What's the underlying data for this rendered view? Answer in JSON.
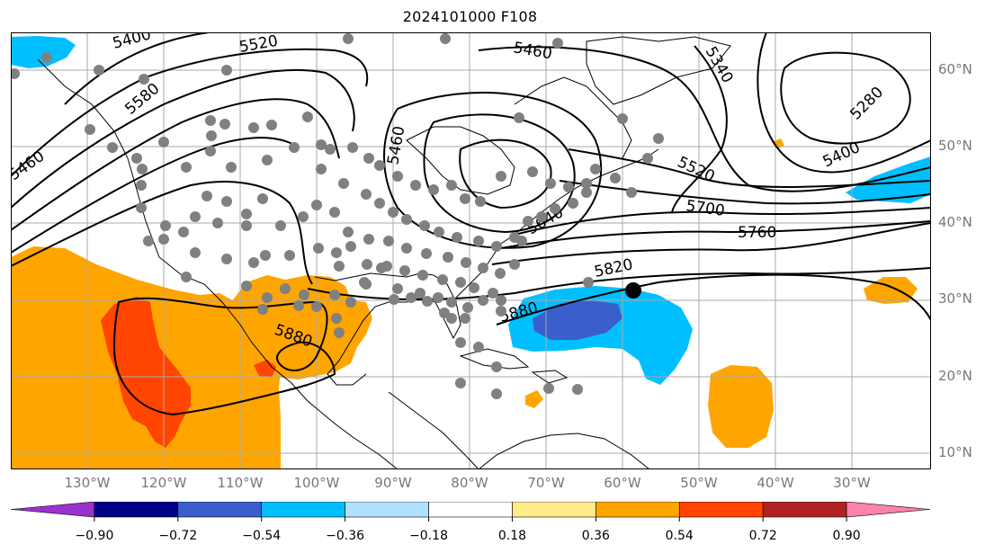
{
  "title": "2024101000 F108",
  "map": {
    "lat_labels": [
      "60°N",
      "50°N",
      "40°N",
      "30°N",
      "20°N",
      "10°N"
    ],
    "lon_labels": [
      "130°W",
      "120°W",
      "110°W",
      "100°W",
      "90°W",
      "80°W",
      "70°W",
      "60°W",
      "50°W",
      "40°W",
      "30°W"
    ],
    "height_contour_labels": [
      "5400",
      "5520",
      "5460",
      "5340",
      "5580",
      "5460",
      "5280",
      "5460",
      "5520",
      "5400",
      "5700",
      "5640",
      "5760",
      "5820",
      "5880",
      "5880"
    ],
    "colors": {
      "land_outline": "#000000",
      "grid": "#aaaaaa",
      "marker_gray": "#808080",
      "marker_black": "#000000"
    }
  },
  "colorbar": {
    "tick_labels": [
      "−0.90",
      "−0.72",
      "−0.54",
      "−0.36",
      "−0.18",
      "0.18",
      "0.36",
      "0.54",
      "0.72",
      "0.90"
    ],
    "colors": [
      "#9a32cd",
      "#00008b",
      "#3a5fcd",
      "#00bfff",
      "#b0e2ff",
      "#ffffff",
      "#ffec8b",
      "#ffa500",
      "#ff4500",
      "#b22222",
      "#ff82ab"
    ]
  }
}
